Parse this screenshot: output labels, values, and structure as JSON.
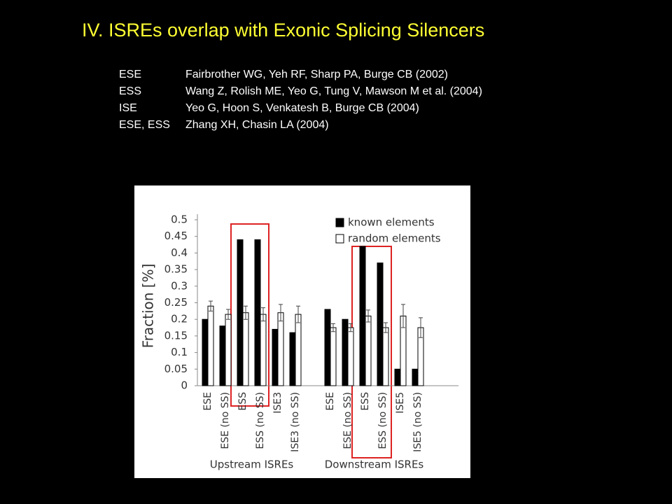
{
  "slide": {
    "title": "IV. ISREs overlap with Exonic Splicing Silencers",
    "references": [
      {
        "label": "ESE",
        "text": "Fairbrother WG, Yeh RF, Sharp PA, Burge CB (2002)"
      },
      {
        "label": "ESS",
        "text": "Wang Z, Rolish ME, Yeo G, Tung V, Mawson M et al. (2004)"
      },
      {
        "label": "ISE",
        "text": "Yeo G, Hoon S, Venkatesh B, Burge CB (2004)"
      },
      {
        "label": "ESE, ESS",
        "text": "Zhang XH, Chasin LA (2004)"
      }
    ]
  },
  "chart_data": {
    "type": "bar",
    "y_label": "Fraction [%]",
    "categories": [
      "ESE",
      "ESE (no SS)",
      "ESS",
      "ESS (no SS)",
      "ISE3",
      "ISE3 (no SS)",
      null,
      "ESE",
      "ESE (no SS)",
      "ESS",
      "ESS (no SS)",
      "ISE5",
      "ISE5 (no SS)"
    ],
    "groups": [
      "Upstream ISREs",
      "Downstream ISREs"
    ],
    "series": [
      {
        "name": "known elements",
        "color": "#000000",
        "values": [
          0.2,
          0.18,
          0.44,
          0.44,
          0.17,
          0.16,
          null,
          0.23,
          0.2,
          0.42,
          0.37,
          0.05,
          0.05
        ]
      },
      {
        "name": "random elements",
        "color": "#ffffff",
        "values": [
          0.24,
          0.215,
          0.22,
          0.215,
          0.22,
          0.215,
          null,
          0.175,
          0.175,
          0.21,
          0.175,
          0.21,
          0.175
        ],
        "errors": [
          0.015,
          0.015,
          0.02,
          0.02,
          0.025,
          0.025,
          null,
          0.012,
          0.012,
          0.018,
          0.015,
          0.035,
          0.03
        ]
      }
    ],
    "ylim": [
      0,
      0.5
    ],
    "yticks": [
      0,
      0.05,
      0.1,
      0.15,
      0.2,
      0.25,
      0.3,
      0.35,
      0.4,
      0.45,
      0.5
    ],
    "legend": "top-right",
    "grid": false
  }
}
